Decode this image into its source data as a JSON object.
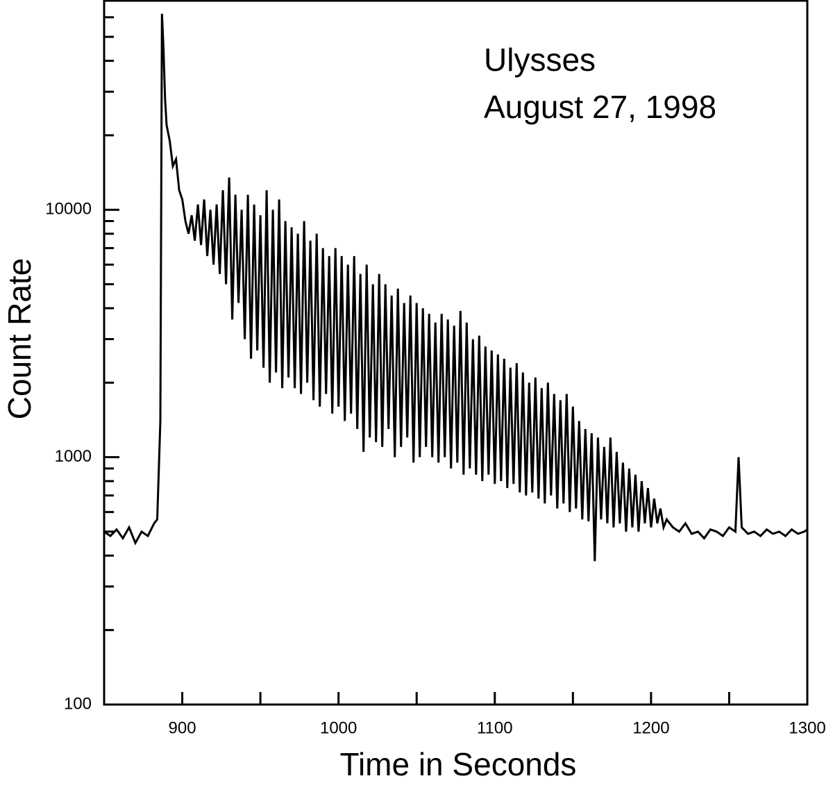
{
  "chart_data": {
    "type": "line",
    "annotations": [
      "Ulysses",
      "August 27, 1998"
    ],
    "xlabel": "Time in Seconds",
    "ylabel": "Count Rate",
    "color": "#000000",
    "log_y": true,
    "xlim": [
      850,
      1300
    ],
    "xticks": [
      900,
      1000,
      1100,
      1200,
      1300
    ],
    "xminorticks": [
      950,
      1050,
      1150,
      1250
    ],
    "ylim": [
      100,
      70000
    ],
    "yticks": [
      100,
      1000,
      10000
    ],
    "yminorticks": [
      200,
      300,
      400,
      500,
      600,
      700,
      800,
      900,
      2000,
      3000,
      4000,
      5000,
      6000,
      7000,
      8000,
      9000,
      20000,
      30000,
      40000,
      50000,
      60000
    ],
    "x": [
      850,
      854,
      858,
      862,
      866,
      870,
      874,
      878,
      882,
      884,
      886,
      887,
      888,
      889,
      890,
      892,
      894,
      896,
      898,
      900,
      902,
      904,
      906,
      908,
      910,
      912,
      914,
      916,
      918,
      920,
      922,
      924,
      926,
      928,
      930,
      932,
      934,
      936,
      938,
      940,
      942,
      944,
      946,
      948,
      950,
      952,
      954,
      956,
      958,
      960,
      962,
      964,
      966,
      968,
      970,
      972,
      974,
      976,
      978,
      980,
      982,
      984,
      986,
      988,
      990,
      992,
      994,
      996,
      998,
      1000,
      1002,
      1004,
      1006,
      1008,
      1010,
      1012,
      1014,
      1016,
      1018,
      1020,
      1022,
      1024,
      1026,
      1028,
      1030,
      1032,
      1034,
      1036,
      1038,
      1040,
      1042,
      1044,
      1046,
      1048,
      1050,
      1052,
      1054,
      1056,
      1058,
      1060,
      1062,
      1064,
      1066,
      1068,
      1070,
      1072,
      1074,
      1076,
      1078,
      1080,
      1082,
      1084,
      1086,
      1088,
      1090,
      1092,
      1094,
      1096,
      1098,
      1100,
      1102,
      1104,
      1106,
      1108,
      1110,
      1112,
      1114,
      1116,
      1118,
      1120,
      1122,
      1124,
      1126,
      1128,
      1130,
      1132,
      1134,
      1136,
      1138,
      1140,
      1142,
      1144,
      1146,
      1148,
      1150,
      1152,
      1154,
      1156,
      1158,
      1160,
      1162,
      1164,
      1166,
      1168,
      1170,
      1172,
      1174,
      1176,
      1178,
      1180,
      1182,
      1184,
      1186,
      1188,
      1190,
      1192,
      1194,
      1196,
      1198,
      1200,
      1202,
      1204,
      1206,
      1208,
      1210,
      1214,
      1218,
      1222,
      1226,
      1230,
      1234,
      1238,
      1242,
      1246,
      1250,
      1254,
      1256,
      1258,
      1262,
      1266,
      1270,
      1274,
      1278,
      1282,
      1286,
      1290,
      1294,
      1298,
      1300
    ],
    "values": [
      500,
      480,
      510,
      470,
      520,
      450,
      500,
      480,
      540,
      560,
      1400,
      62000,
      45000,
      28000,
      22000,
      19000,
      15000,
      16000,
      12000,
      11000,
      9000,
      8000,
      9500,
      7500,
      10500,
      7200,
      11000,
      6500,
      10000,
      6000,
      10500,
      5500,
      12000,
      5000,
      13500,
      3600,
      11500,
      4200,
      10000,
      3000,
      11500,
      2500,
      10500,
      2700,
      9500,
      2300,
      12000,
      2000,
      10000,
      2200,
      11000,
      1900,
      9000,
      2100,
      8500,
      1900,
      8000,
      1800,
      9000,
      2000,
      7500,
      1700,
      8000,
      1600,
      7000,
      1800,
      6500,
      1500,
      7000,
      1600,
      6500,
      1400,
      6000,
      1500,
      6500,
      1300,
      5500,
      1050,
      6000,
      1200,
      5000,
      1150,
      5500,
      1100,
      5000,
      1300,
      4500,
      1000,
      4800,
      1100,
      4200,
      1200,
      4500,
      950,
      4200,
      1000,
      4000,
      1100,
      3800,
      1000,
      3500,
      950,
      3800,
      1000,
      3600,
      900,
      3400,
      950,
      3900,
      850,
      3500,
      900,
      3000,
      850,
      3100,
      800,
      2800,
      850,
      2700,
      780,
      2600,
      800,
      2500,
      750,
      2300,
      780,
      2400,
      720,
      2200,
      700,
      2000,
      720,
      2100,
      680,
      1900,
      650,
      2000,
      700,
      1800,
      620,
      1700,
      650,
      1800,
      600,
      1600,
      620,
      1400,
      560,
      1300,
      550,
      1250,
      380,
      1200,
      560,
      1100,
      540,
      1200,
      520,
      1050,
      540,
      950,
      500,
      900,
      520,
      850,
      500,
      800,
      540,
      750,
      520,
      680,
      540,
      620,
      520,
      560,
      520,
      500,
      540,
      490,
      500,
      470,
      510,
      500,
      480,
      520,
      500,
      1000,
      520,
      490,
      500,
      480,
      510,
      490,
      500,
      480,
      510,
      490,
      500,
      510
    ]
  }
}
